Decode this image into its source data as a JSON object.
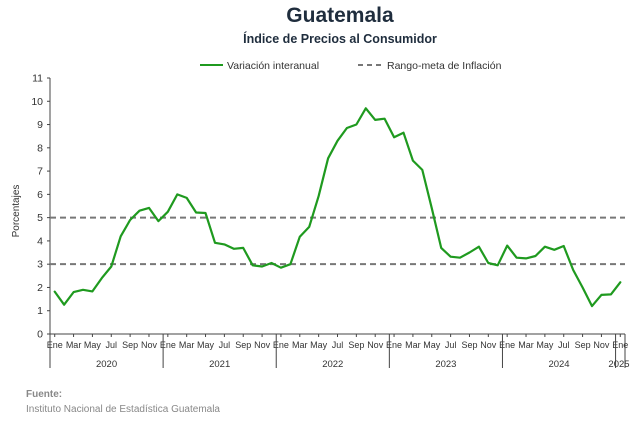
{
  "title": "Guatemala",
  "subtitle": "Índice de Precios al Consumidor",
  "source_label": "Fuente:",
  "source_text": "Instituto Nacional de Estadística Guatemala",
  "colors": {
    "series": "#1f9a1f",
    "target": "#777777",
    "axis": "#444444",
    "title": "#1f2d3d"
  },
  "chart_data": {
    "type": "line",
    "ylabel": "Porcentajes",
    "ylim": [
      0,
      11
    ],
    "yticks": [
      0,
      1,
      2,
      3,
      4,
      5,
      6,
      7,
      8,
      9,
      10,
      11
    ],
    "x_tick_labels": [
      "Ene",
      "Mar",
      "May",
      "Jul",
      "Sep",
      "Nov",
      "Ene",
      "Mar",
      "May",
      "Jul",
      "Sep",
      "Nov",
      "Ene",
      "Mar",
      "May",
      "Jul",
      "Sep",
      "Nov",
      "Ene",
      "Mar",
      "May",
      "Jul",
      "Sep",
      "Nov",
      "Ene",
      "Mar",
      "May",
      "Jul",
      "Sep",
      "Nov",
      "Ene"
    ],
    "years": [
      "2020",
      "2021",
      "2022",
      "2023",
      "2024",
      "2025"
    ],
    "series": [
      {
        "name": "Variación interanual",
        "style": "solid",
        "x_start": "2020-01",
        "x_end": "2025-01",
        "values": [
          1.82,
          1.26,
          1.8,
          1.9,
          1.83,
          2.4,
          2.9,
          4.2,
          4.9,
          5.3,
          5.42,
          4.85,
          5.25,
          6.0,
          5.85,
          5.22,
          5.2,
          3.92,
          3.85,
          3.66,
          3.7,
          2.95,
          2.9,
          3.05,
          2.85,
          3.0,
          4.18,
          4.6,
          5.92,
          7.55,
          8.3,
          8.85,
          9.0,
          9.7,
          9.2,
          9.25,
          8.45,
          8.65,
          7.45,
          7.05,
          5.4,
          3.7,
          3.32,
          3.28,
          3.5,
          3.75,
          3.05,
          2.95,
          3.8,
          3.28,
          3.25,
          3.35,
          3.75,
          3.62,
          3.78,
          2.75,
          2.0,
          1.2,
          1.68,
          1.7,
          2.22
        ]
      },
      {
        "name": "Rango-meta de Inflación",
        "style": "dashed",
        "values": [
          5,
          3
        ]
      }
    ],
    "legend_position": "top-center",
    "grid": false
  }
}
